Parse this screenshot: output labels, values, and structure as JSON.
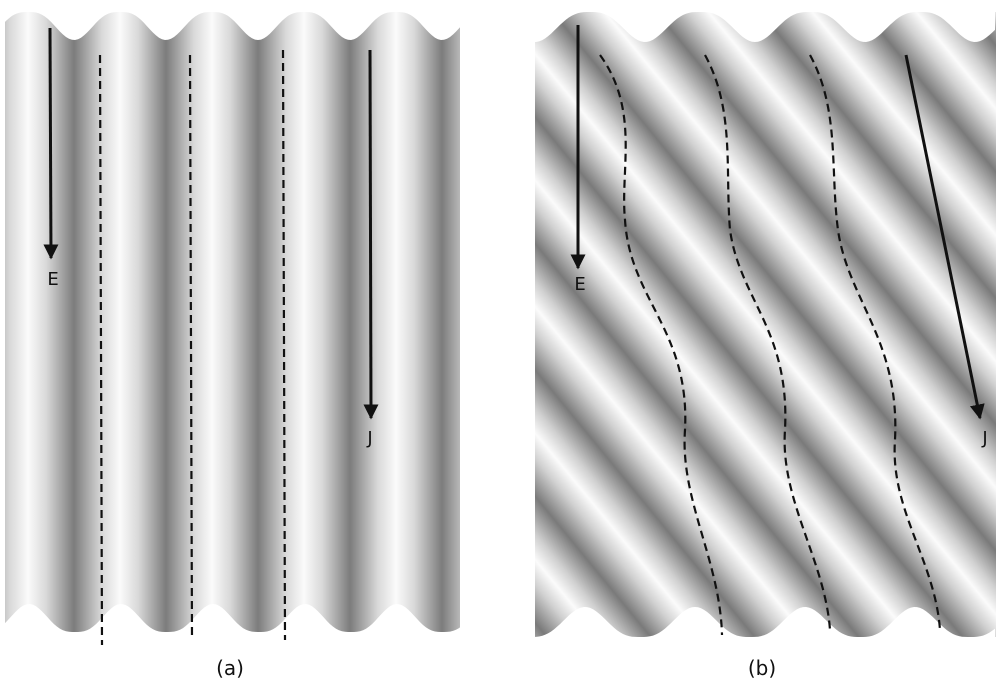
{
  "panels": [
    {
      "caption": "(a)",
      "arrows": [
        {
          "label": "E"
        },
        {
          "label": "J"
        }
      ]
    },
    {
      "caption": "(b)",
      "arrows": [
        {
          "label": "E"
        },
        {
          "label": "J"
        }
      ]
    }
  ]
}
